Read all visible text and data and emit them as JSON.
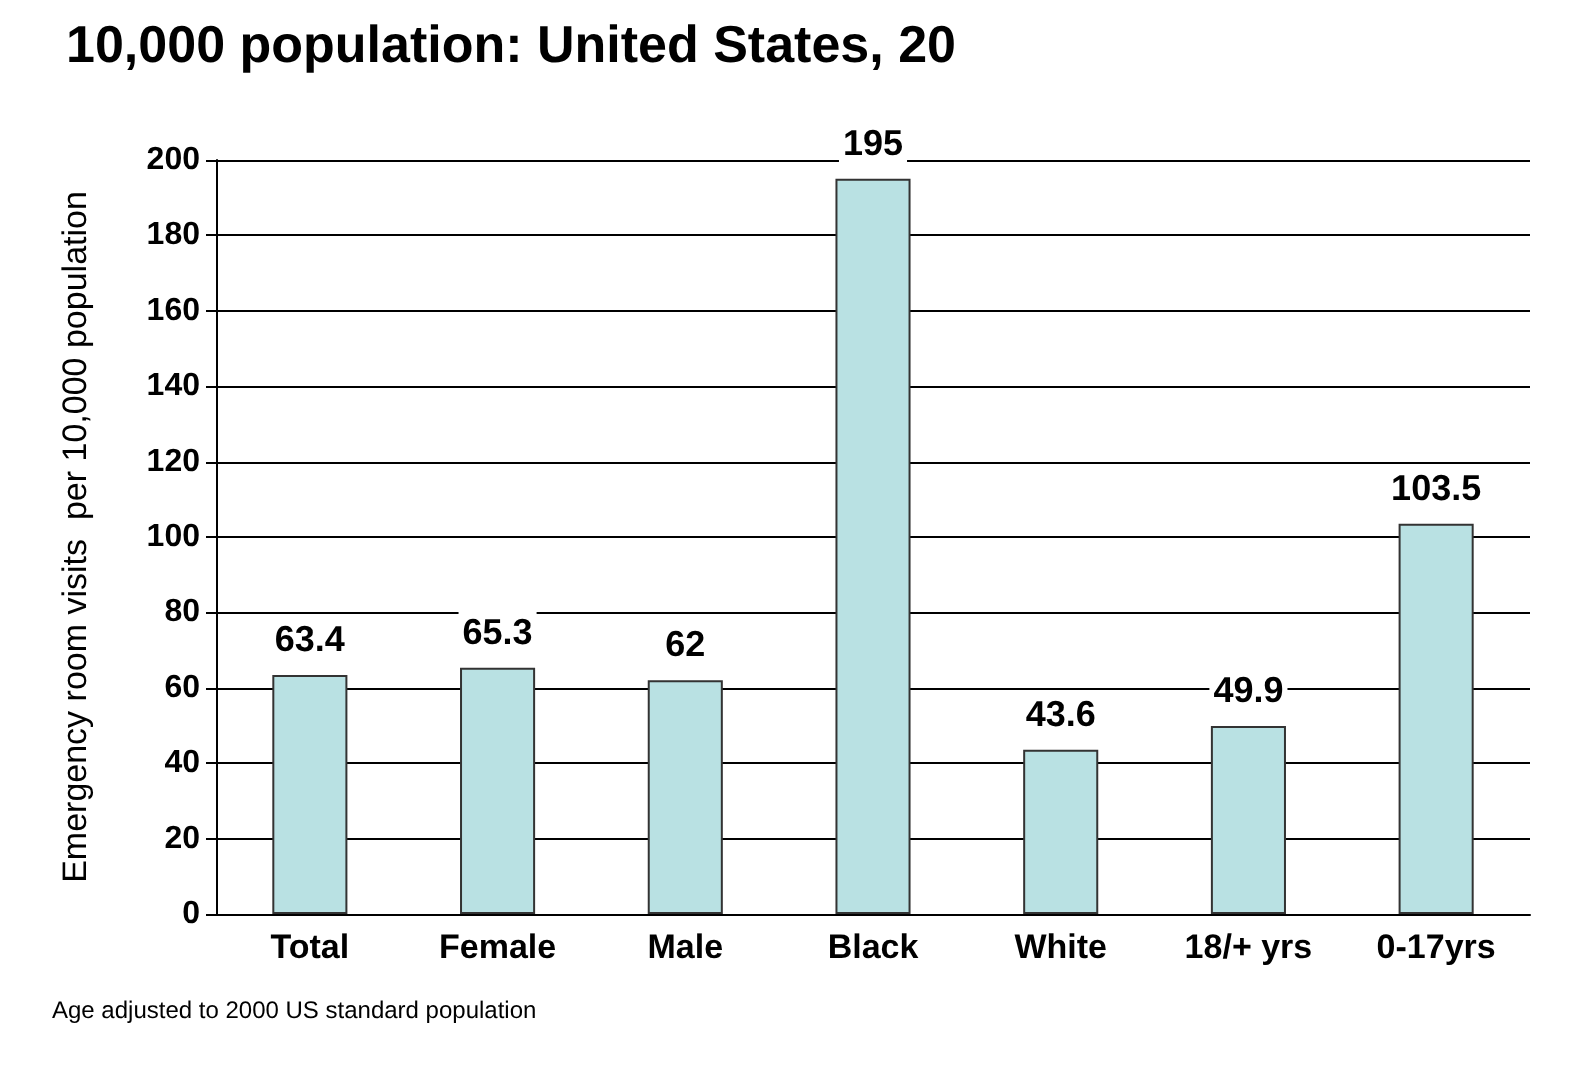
{
  "chart_data": {
    "type": "bar",
    "title": "10,000 population: United States, 20",
    "ylabel": "Emergency room visits  per 10,000 population",
    "categories": [
      "Total",
      "Female",
      "Male",
      "Black",
      "White",
      "18/+ yrs",
      "0-17yrs"
    ],
    "values": [
      63.4,
      65.3,
      62,
      195,
      43.6,
      49.9,
      103.5
    ],
    "color": "#b9e1e3",
    "ylim": [
      0,
      200
    ],
    "yticks": [
      0,
      20,
      40,
      60,
      80,
      100,
      120,
      140,
      160,
      180,
      200
    ],
    "grid": "y",
    "data_labels": true,
    "annotations": [
      "Age adjusted to 2000 US standard population"
    ]
  }
}
